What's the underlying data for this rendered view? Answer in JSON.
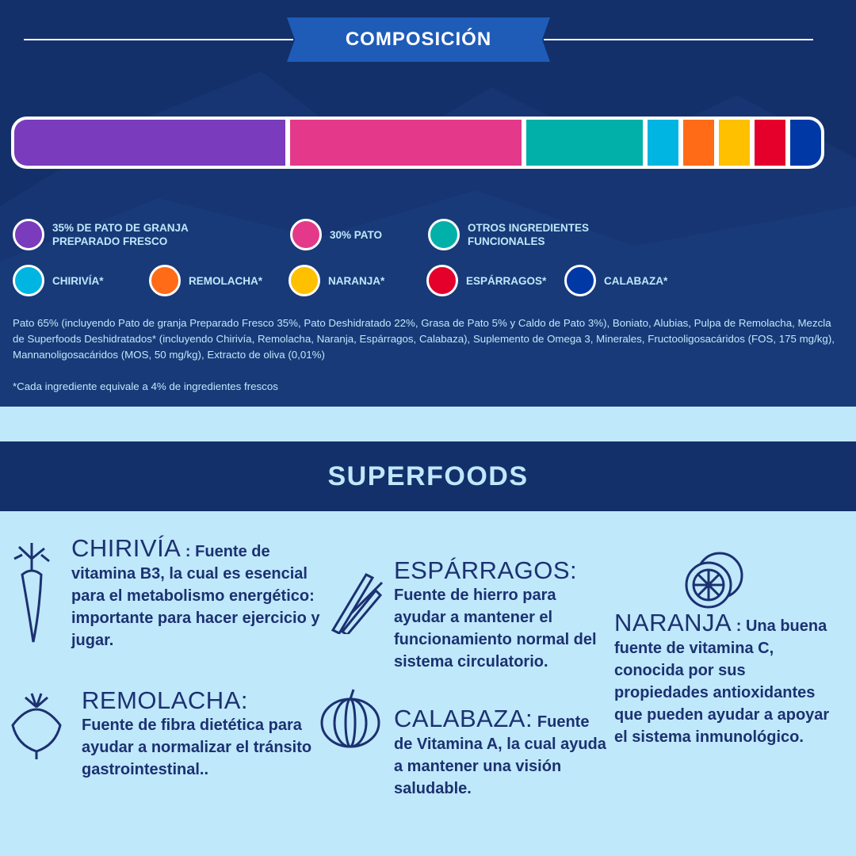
{
  "header": {
    "title": "COMPOSICIÓN"
  },
  "composition_bar": [
    {
      "label": "35% DE PATO DE GRANJA PREPARADO FRESCO",
      "percent": 35,
      "color": "#7a3bbd"
    },
    {
      "label": "30% PATO",
      "percent": 30,
      "color": "#e4398a"
    },
    {
      "label": "OTROS INGREDIENTES FUNCIONALES",
      "percent": 15,
      "color": "#00b0a9"
    },
    {
      "label": "CHIRIVÍA*",
      "percent": 4,
      "color": "#00b5e2"
    },
    {
      "label": "REMOLACHA*",
      "percent": 4,
      "color": "#ff6b17"
    },
    {
      "label": "NARANJA*",
      "percent": 4,
      "color": "#ffc000"
    },
    {
      "label": "ESPÁRRAGOS*",
      "percent": 4,
      "color": "#e4002b"
    },
    {
      "label": "CALABAZA*",
      "percent": 4,
      "color": "#0039a6"
    }
  ],
  "legend": {
    "l0a": "35% DE PATO DE GRANJA",
    "l0b": "PREPARADO FRESCO",
    "l1": "30% PATO",
    "l2a": "OTROS INGREDIENTES",
    "l2b": "FUNCIONALES",
    "l3": "CHIRIVÍA*",
    "l4": "REMOLACHA*",
    "l5": "NARANJA*",
    "l6": "ESPÁRRAGOS*",
    "l7": "CALABAZA*"
  },
  "ingredients": "Pato 65% (incluyendo Pato de granja Preparado Fresco 35%, Pato Deshidratado 22%, Grasa de Pato 5% y Caldo de Pato 3%), Boniato, Alubias, Pulpa de Remolacha, Mezcla de Superfoods Deshidratados* (incluyendo Chirivía, Remolacha, Naranja, Espárragos, Calabaza), Suplemento de Omega 3, Minerales, Fructooligosacáridos (FOS, 175 mg/kg), Mannanoligosacáridos (MOS, 50 mg/kg), Extracto de oliva (0,01%)",
  "note": "*Cada ingrediente equivale a 4% de ingredientes frescos",
  "superfoods": {
    "title": "SUPERFOODS",
    "chirivia": {
      "name": "CHIRIVÍA",
      "sep": " : ",
      "text": "Fuente de vitamina B3, la cual es esencial  para el metabolismo energético: importante para hacer ejercicio y jugar."
    },
    "remolacha": {
      "name": "REMOLACHA:",
      "text": "Fuente de fibra dietética para ayudar  a normalizar el tránsito gastrointestinal.."
    },
    "esparragos": {
      "name": "ESPÁRRAGOS:",
      "text": "Fuente de hierro para ayudar a mantener el funcionamiento normal del sistema circulatorio."
    },
    "calabaza": {
      "name": "CALABAZA:",
      "text": "Fuente de Vitamina A, la cual ayuda a mantener una visión saludable."
    },
    "naranja": {
      "name": "NARANJA",
      "sep": " : ",
      "text": "Una buena fuente de vitamina C, conocida por sus propiedades antioxidantes que pueden ayudar a apoyar el sistema inmunológico."
    }
  }
}
